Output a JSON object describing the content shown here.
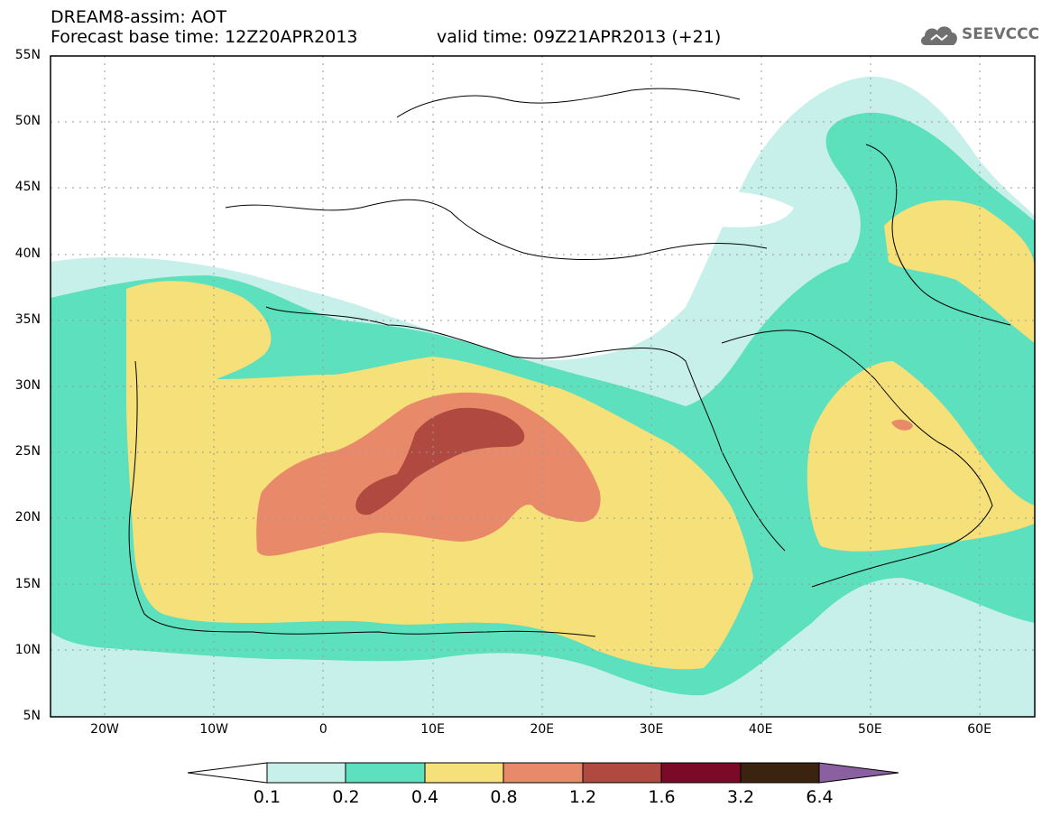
{
  "header": {
    "line1": "DREAM8-assim: AOT",
    "line2": "Forecast base time: 12Z20APR2013",
    "valid": "valid time: 09Z21APR2013 (+21)"
  },
  "logo": {
    "text": "SEEVCCC",
    "icon": "cloud-icon"
  },
  "map": {
    "lat_labels": [
      "55N",
      "50N",
      "45N",
      "40N",
      "35N",
      "30N",
      "25N",
      "20N",
      "15N",
      "10N",
      "5N"
    ],
    "lon_labels": [
      "20W",
      "10W",
      "0",
      "10E",
      "20E",
      "30E",
      "40E",
      "50E",
      "60E"
    ],
    "extent": {
      "lon": [
        -25,
        65
      ],
      "lat": [
        5,
        55
      ]
    },
    "gridlines": "dotted"
  },
  "colorbar": {
    "labels": [
      "0.1",
      "0.2",
      "0.4",
      "0.8",
      "1.2",
      "1.6",
      "3.2",
      "6.4"
    ],
    "colors": [
      "#ffffff",
      "#c8f0ea",
      "#5ce0bd",
      "#f5e07a",
      "#e88a6a",
      "#b04a40",
      "#7a0a28",
      "#3a2410",
      "#8a60a0"
    ]
  }
}
